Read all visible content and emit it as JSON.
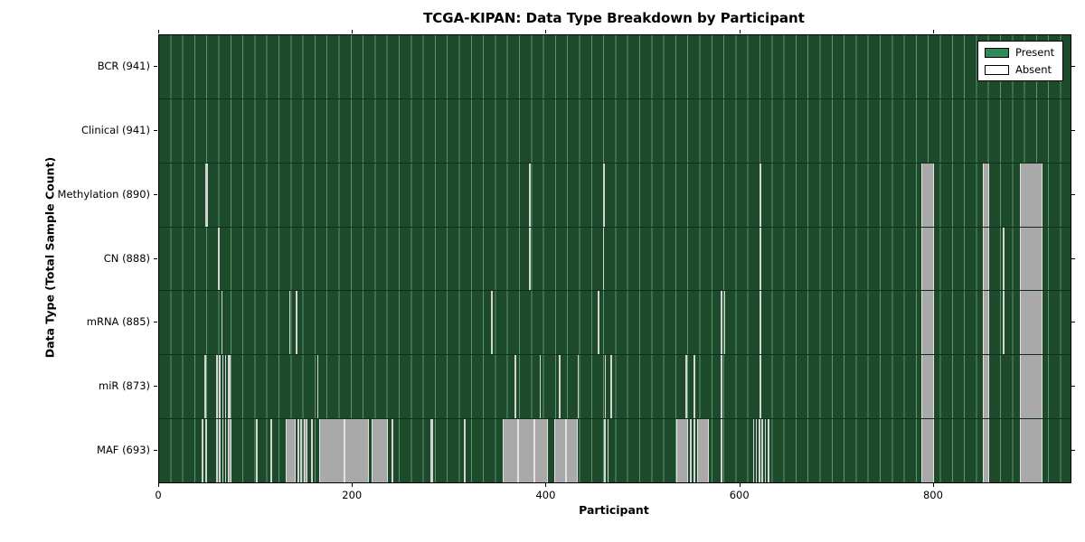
{
  "chart_data": {
    "type": "heatmap",
    "title": "TCGA-KIPAN: Data Type Breakdown by Participant",
    "xlabel": "Participant",
    "ylabel": "Data Type (Total Sample Count)",
    "x_max": 941,
    "x_ticks": [
      0,
      200,
      400,
      600,
      800
    ],
    "grid": true,
    "legend_position": "upper right",
    "legend": [
      {
        "label": "Present",
        "color": "#2e8b57"
      },
      {
        "label": "Absent",
        "color": "#ffffff"
      }
    ],
    "colors": {
      "present_fill": "#1c4a2a",
      "grid_line": "#5c9670",
      "absent_block": "#a9a9a9",
      "absent_thin": "#d4d4d4",
      "row_divider": "#0f2c1b"
    },
    "rows": [
      {
        "key": "bcr",
        "label": "BCR (941)",
        "total": 941,
        "absent_ranges": []
      },
      {
        "key": "clinical",
        "label": "Clinical (941)",
        "total": 941,
        "absent_ranges": []
      },
      {
        "key": "methylation",
        "label": "Methylation (890)",
        "total": 890,
        "absent_ranges": [
          [
            48,
            50
          ],
          [
            382,
            384
          ],
          [
            458,
            460
          ],
          [
            620,
            621
          ],
          [
            787,
            800
          ],
          [
            850,
            857
          ],
          [
            889,
            912
          ]
        ]
      },
      {
        "key": "cn",
        "label": "CN (888)",
        "total": 888,
        "absent_ranges": [
          [
            61,
            63
          ],
          [
            382,
            383
          ],
          [
            458,
            459
          ],
          [
            620,
            621
          ],
          [
            787,
            800
          ],
          [
            850,
            857
          ],
          [
            871,
            872
          ],
          [
            889,
            912
          ]
        ]
      },
      {
        "key": "mrna",
        "label": "mRNA (885)",
        "total": 885,
        "absent_ranges": [
          [
            64,
            65
          ],
          [
            134,
            135
          ],
          [
            141,
            143
          ],
          [
            343,
            344
          ],
          [
            453,
            454
          ],
          [
            580,
            581
          ],
          [
            583,
            584
          ],
          [
            620,
            621
          ],
          [
            787,
            800
          ],
          [
            850,
            857
          ],
          [
            871,
            872
          ],
          [
            889,
            912
          ]
        ]
      },
      {
        "key": "mir",
        "label": "miR (873)",
        "total": 873,
        "absent_ranges": [
          [
            47,
            48
          ],
          [
            59,
            60
          ],
          [
            62,
            63
          ],
          [
            65,
            66
          ],
          [
            68,
            69
          ],
          [
            71,
            74
          ],
          [
            163,
            164
          ],
          [
            367,
            368
          ],
          [
            393,
            394
          ],
          [
            413,
            414
          ],
          [
            432,
            433
          ],
          [
            460,
            461
          ],
          [
            466,
            468
          ],
          [
            543,
            545
          ],
          [
            552,
            554
          ],
          [
            580,
            581
          ],
          [
            620,
            621
          ],
          [
            787,
            800
          ],
          [
            850,
            857
          ],
          [
            889,
            912
          ]
        ]
      },
      {
        "key": "maf",
        "label": "MAF (693)",
        "total": 693,
        "absent_ranges": [
          [
            44,
            45
          ],
          [
            48,
            49
          ],
          [
            59,
            60
          ],
          [
            62,
            63
          ],
          [
            65,
            66
          ],
          [
            68,
            69
          ],
          [
            71,
            75
          ],
          [
            100,
            101
          ],
          [
            115,
            116
          ],
          [
            131,
            141
          ],
          [
            143,
            144
          ],
          [
            146,
            147
          ],
          [
            149,
            153
          ],
          [
            157,
            158
          ],
          [
            165,
            191
          ],
          [
            191,
            217
          ],
          [
            219,
            236
          ],
          [
            240,
            241
          ],
          [
            280,
            283
          ],
          [
            315,
            316
          ],
          [
            355,
            371
          ],
          [
            371,
            387
          ],
          [
            387,
            401
          ],
          [
            408,
            420
          ],
          [
            420,
            432
          ],
          [
            459,
            461
          ],
          [
            463,
            464
          ],
          [
            534,
            546
          ],
          [
            548,
            549
          ],
          [
            552,
            554
          ],
          [
            555,
            568
          ],
          [
            580,
            581
          ],
          [
            613,
            614
          ],
          [
            616,
            617
          ],
          [
            619,
            620
          ],
          [
            622,
            623
          ],
          [
            625,
            626
          ],
          [
            628,
            630
          ],
          [
            787,
            800
          ],
          [
            850,
            857
          ],
          [
            889,
            912
          ]
        ]
      }
    ]
  }
}
